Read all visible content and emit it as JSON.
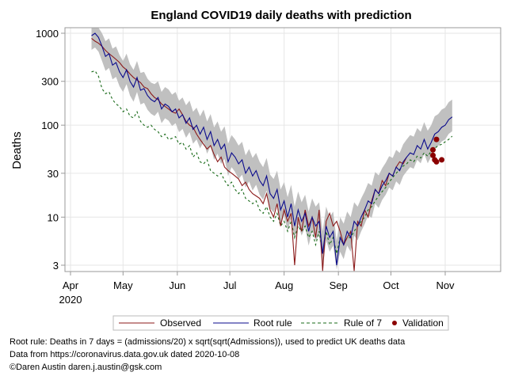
{
  "chart_data": {
    "type": "line",
    "title": "England COVID19 daily deaths with prediction",
    "xlabel": "",
    "ylabel": "Deaths",
    "yscale": "log",
    "ylim": [
      2.7,
      1100
    ],
    "yticks": [
      1000,
      300,
      100,
      30,
      10,
      3
    ],
    "ytick_labels": [
      "1000",
      "300",
      "100",
      "30",
      "10",
      "3"
    ],
    "x_unit": "days since 2020-04-01",
    "xlim": [
      -1,
      220
    ],
    "xticks": [
      0,
      30,
      61,
      91,
      122,
      153,
      183,
      214
    ],
    "xtick_labels": [
      "Apr",
      "May",
      "Jun",
      "Jul",
      "Aug",
      "Sep",
      "Oct",
      "Nov"
    ],
    "xtick_sublabel": "2020",
    "grid": true,
    "legend_position": "bottom",
    "series": [
      {
        "name": "Observed",
        "style": "solid",
        "color": "#8b1a1a",
        "x": [
          12,
          14,
          16,
          18,
          20,
          22,
          24,
          26,
          28,
          30,
          32,
          34,
          36,
          38,
          40,
          42,
          44,
          46,
          48,
          50,
          52,
          54,
          56,
          58,
          60,
          62,
          64,
          66,
          68,
          70,
          72,
          74,
          76,
          78,
          80,
          82,
          84,
          86,
          88,
          90,
          92,
          94,
          96,
          98,
          100,
          102,
          104,
          106,
          108,
          110,
          112,
          114,
          116,
          118,
          120,
          122,
          124,
          126,
          128,
          130,
          132,
          134,
          136,
          138,
          140,
          142,
          144,
          146,
          148,
          150,
          152,
          154,
          156,
          158,
          160,
          162,
          164,
          166,
          168,
          170,
          172,
          174,
          176,
          178,
          180,
          182,
          184,
          186,
          188,
          190,
          192
        ],
        "values": [
          880,
          820,
          780,
          720,
          650,
          600,
          560,
          520,
          480,
          430,
          400,
          360,
          330,
          310,
          290,
          260,
          250,
          220,
          200,
          190,
          170,
          160,
          150,
          140,
          135,
          150,
          130,
          110,
          100,
          95,
          80,
          70,
          62,
          55,
          60,
          48,
          40,
          45,
          35,
          32,
          30,
          28,
          26,
          22,
          24,
          20,
          18,
          17,
          16,
          14,
          18,
          12,
          10,
          14,
          8,
          12,
          9,
          11,
          3,
          10,
          7,
          12,
          8,
          10,
          6,
          12,
          2.6,
          9,
          11,
          8,
          9,
          7,
          5,
          6,
          7,
          2.6,
          9,
          8,
          12,
          10,
          15,
          20,
          18,
          25,
          22,
          30,
          28,
          35,
          40,
          38,
          45
        ]
      },
      {
        "name": "Root rule",
        "style": "solid",
        "color": "#0a0a8c",
        "x": [
          12,
          14,
          16,
          18,
          20,
          22,
          24,
          26,
          28,
          30,
          32,
          34,
          36,
          38,
          40,
          42,
          44,
          46,
          48,
          50,
          52,
          54,
          56,
          58,
          60,
          62,
          64,
          66,
          68,
          70,
          72,
          74,
          76,
          78,
          80,
          82,
          84,
          86,
          88,
          90,
          92,
          94,
          96,
          98,
          100,
          102,
          104,
          106,
          108,
          110,
          112,
          114,
          116,
          118,
          120,
          122,
          124,
          126,
          128,
          130,
          132,
          134,
          136,
          138,
          140,
          142,
          144,
          146,
          148,
          150,
          152,
          154,
          156,
          158,
          160,
          162,
          164,
          166,
          168,
          170,
          172,
          174,
          176,
          178,
          180,
          182,
          184,
          186,
          188,
          190,
          192,
          194,
          196,
          198,
          200,
          202,
          204,
          206,
          208,
          210,
          212,
          214,
          216,
          218
        ],
        "values": [
          940,
          1000,
          900,
          720,
          560,
          600,
          450,
          480,
          380,
          330,
          400,
          300,
          260,
          330,
          240,
          250,
          210,
          190,
          180,
          200,
          150,
          170,
          160,
          140,
          150,
          120,
          130,
          105,
          120,
          90,
          100,
          80,
          95,
          70,
          85,
          60,
          70,
          55,
          62,
          40,
          50,
          45,
          38,
          42,
          30,
          35,
          28,
          32,
          25,
          22,
          28,
          18,
          16,
          20,
          12,
          15,
          10,
          14,
          8,
          12,
          9,
          11,
          7,
          10,
          8,
          9,
          4,
          8,
          6,
          7,
          3,
          6,
          5,
          7,
          6,
          9,
          8,
          10,
          12,
          15,
          14,
          20,
          18,
          22,
          25,
          30,
          28,
          35,
          32,
          40,
          45,
          50,
          48,
          60,
          55,
          70,
          55,
          65,
          80,
          85,
          95,
          100,
          115,
          123
        ]
      },
      {
        "name": "Rule of 7",
        "style": "dashed",
        "color": "#1a6b1a",
        "x": [
          12,
          14,
          16,
          18,
          20,
          22,
          24,
          26,
          28,
          30,
          32,
          34,
          36,
          38,
          40,
          42,
          44,
          46,
          48,
          50,
          52,
          54,
          56,
          58,
          60,
          62,
          64,
          66,
          68,
          70,
          72,
          74,
          76,
          78,
          80,
          82,
          84,
          86,
          88,
          90,
          92,
          94,
          96,
          98,
          100,
          102,
          104,
          106,
          108,
          110,
          112,
          114,
          116,
          118,
          120,
          122,
          124,
          126,
          128,
          130,
          132,
          134,
          136,
          138,
          140,
          142,
          144,
          146,
          148,
          150,
          152,
          154,
          156,
          158,
          160,
          162,
          164,
          166,
          168,
          170,
          172,
          174,
          176,
          178,
          180,
          182,
          184,
          186,
          188,
          190,
          192,
          194,
          196,
          198,
          200,
          202,
          204,
          206,
          208,
          210,
          212,
          214,
          216,
          218
        ],
        "values": [
          380,
          390,
          340,
          250,
          220,
          230,
          190,
          170,
          160,
          140,
          150,
          125,
          120,
          140,
          110,
          100,
          95,
          100,
          90,
          85,
          75,
          80,
          70,
          72,
          75,
          62,
          65,
          55,
          60,
          45,
          50,
          40,
          38,
          42,
          32,
          30,
          28,
          30,
          25,
          22,
          24,
          20,
          18,
          20,
          16,
          15,
          14,
          15,
          12,
          11,
          13,
          10,
          9,
          11,
          8,
          9,
          7,
          9,
          6,
          8,
          7,
          8,
          6,
          7,
          5,
          7,
          4,
          7,
          5,
          6,
          4,
          6,
          5,
          6,
          6,
          7,
          8,
          9,
          10,
          12,
          13,
          15,
          17,
          19,
          21,
          24,
          27,
          30,
          33,
          36,
          38,
          42,
          40,
          46,
          44,
          50,
          46,
          52,
          56,
          60,
          62,
          66,
          70,
          76
        ]
      },
      {
        "name": "Prediction band",
        "style": "band",
        "color": "#c0c0c0",
        "x": [
          12,
          14,
          16,
          18,
          20,
          22,
          24,
          26,
          28,
          30,
          32,
          34,
          36,
          38,
          40,
          42,
          44,
          46,
          48,
          50,
          52,
          54,
          56,
          58,
          60,
          62,
          64,
          66,
          68,
          70,
          72,
          74,
          76,
          78,
          80,
          82,
          84,
          86,
          88,
          90,
          92,
          94,
          96,
          98,
          100,
          102,
          104,
          106,
          108,
          110,
          112,
          114,
          116,
          118,
          120,
          122,
          124,
          126,
          128,
          130,
          132,
          134,
          136,
          138,
          140,
          142,
          144,
          146,
          148,
          150,
          152,
          154,
          156,
          158,
          160,
          162,
          164,
          166,
          168,
          170,
          172,
          174,
          176,
          178,
          180,
          182,
          184,
          186,
          188,
          190,
          192,
          194,
          196,
          198,
          200,
          202,
          204,
          206,
          208,
          210,
          212,
          214,
          216,
          218
        ],
        "upper": [
          1300,
          1400,
          1250,
          1000,
          820,
          880,
          680,
          720,
          580,
          500,
          600,
          460,
          400,
          500,
          370,
          380,
          320,
          290,
          280,
          300,
          230,
          260,
          245,
          215,
          230,
          185,
          200,
          165,
          185,
          140,
          155,
          125,
          148,
          110,
          132,
          95,
          110,
          85,
          97,
          63,
          78,
          70,
          60,
          66,
          47,
          55,
          44,
          50,
          40,
          35,
          44,
          29,
          26,
          32,
          20,
          24,
          16.5,
          22.5,
          13,
          19,
          14.5,
          17.5,
          11.5,
          16,
          13,
          14.5,
          7,
          13,
          10,
          11.5,
          5.5,
          10,
          8.5,
          11.5,
          10,
          14.5,
          13,
          16,
          19,
          23.5,
          22,
          31,
          28.5,
          34,
          39,
          46,
          44,
          54,
          50,
          62,
          70,
          78,
          75,
          93,
          85,
          108,
          87,
          100,
          125,
          132,
          148,
          155,
          178,
          190
        ],
        "lower": [
          660,
          700,
          630,
          500,
          390,
          420,
          315,
          335,
          265,
          230,
          280,
          210,
          180,
          230,
          168,
          175,
          147,
          133,
          126,
          140,
          105,
          119,
          112,
          98,
          105,
          84,
          91,
          73,
          84,
          63,
          70,
          56,
          66,
          49,
          59,
          42,
          49,
          38,
          43,
          28,
          35,
          31,
          26,
          29,
          21,
          24.5,
          19.5,
          22.5,
          17.5,
          15.5,
          19.5,
          12.5,
          11.2,
          14,
          8.4,
          10.5,
          7,
          9.8,
          5.6,
          8.4,
          6.3,
          7.7,
          4.9,
          7,
          5.6,
          6.3,
          2.8,
          5.6,
          4.2,
          4.9,
          2.7,
          4.2,
          3.5,
          4.9,
          4.2,
          6.3,
          5.6,
          7,
          8.4,
          10.5,
          9.8,
          14,
          12.6,
          15.4,
          17.5,
          21,
          19.6,
          24.5,
          22.4,
          28,
          31.5,
          35,
          33.6,
          42,
          38.5,
          49,
          38.5,
          45.5,
          56,
          59.5,
          66.5,
          70,
          80.5,
          86
        ]
      },
      {
        "name": "Validation",
        "style": "marker",
        "color": "#8b0000",
        "x": [
          209,
          207,
          207,
          208,
          209,
          212
        ],
        "values": [
          70,
          54,
          47,
          42,
          40,
          42
        ]
      }
    ]
  },
  "legend": {
    "items": [
      {
        "label": "Observed",
        "kind": "line-solid",
        "color": "#8b1a1a"
      },
      {
        "label": "Root rule",
        "kind": "line-solid",
        "color": "#0a0a8c"
      },
      {
        "label": "Rule of 7",
        "kind": "line-dashed",
        "color": "#1a6b1a"
      },
      {
        "label": "Validation",
        "kind": "marker",
        "color": "#8b0000"
      }
    ]
  },
  "footnotes": [
    "Root rule: Deaths in 7 days = (admissions/20) x sqrt(sqrt(Admissions)), used to predict UK deaths data",
    "Data from https://coronavirus.data.gov.uk dated 2020-10-08",
    "©Daren Austin daren.j.austin@gsk.com"
  ]
}
